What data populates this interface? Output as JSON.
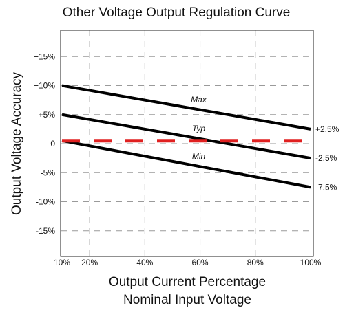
{
  "chart_data": {
    "type": "line",
    "title": "Other Voltage Output Regulation Curve",
    "xlabel": "Output Current Percentage",
    "xlabel2": "Nominal Input Voltage",
    "ylabel": "Output Voltage Accuracy",
    "xlim": [
      10,
      100
    ],
    "ylim": [
      -20,
      20
    ],
    "grid": true,
    "x_ticks": [
      {
        "value": 10,
        "label": "10%"
      },
      {
        "value": 20,
        "label": "20%"
      },
      {
        "value": 40,
        "label": "40%"
      },
      {
        "value": 60,
        "label": "60%"
      },
      {
        "value": 80,
        "label": "80%"
      },
      {
        "value": 100,
        "label": "100%"
      }
    ],
    "y_ticks": [
      {
        "value": 15,
        "label": "+15%"
      },
      {
        "value": 10,
        "label": "+10%"
      },
      {
        "value": 5,
        "label": "+5%"
      },
      {
        "value": 0,
        "label": "0"
      },
      {
        "value": -5,
        "label": "-5%"
      },
      {
        "value": -10,
        "label": "-10%"
      },
      {
        "value": -15,
        "label": "-15%"
      }
    ],
    "series": [
      {
        "name": "Max",
        "x": [
          10,
          100
        ],
        "y": [
          10,
          2.5
        ],
        "end_label": "+2.5%",
        "color": "#000000",
        "style": "solid"
      },
      {
        "name": "Typ",
        "x": [
          10,
          100
        ],
        "y": [
          5,
          -2.5
        ],
        "end_label": "-2.5%",
        "color": "#000000",
        "style": "solid"
      },
      {
        "name": "Min",
        "x": [
          10,
          100
        ],
        "y": [
          0.5,
          -7.5
        ],
        "end_label": "-7.5%",
        "color": "#000000",
        "style": "solid"
      },
      {
        "name": "",
        "x": [
          10,
          100
        ],
        "y": [
          0.5,
          0.5
        ],
        "end_label": "",
        "color": "#e02020",
        "style": "dashed"
      }
    ]
  }
}
